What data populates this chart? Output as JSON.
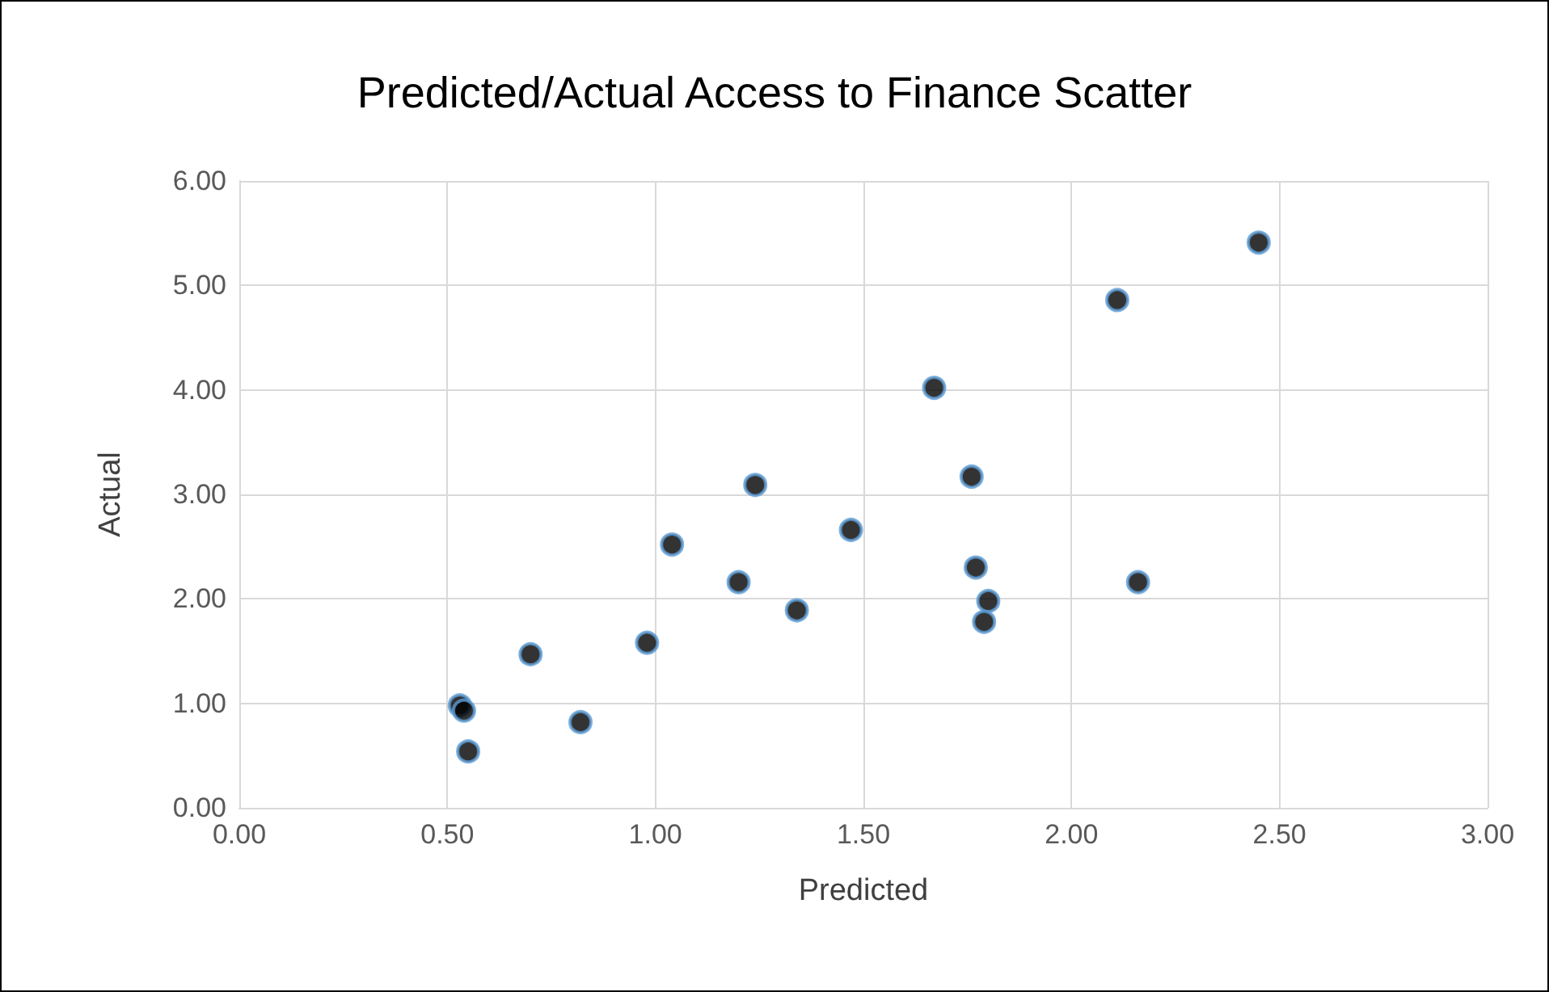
{
  "chart_data": {
    "type": "scatter",
    "title": "Predicted/Actual Access to Finance Scatter",
    "xlabel": "Predicted",
    "ylabel": "Actual",
    "x": [
      0.53,
      0.54,
      0.55,
      0.7,
      0.82,
      0.98,
      1.04,
      1.2,
      1.24,
      1.34,
      1.47,
      1.67,
      1.76,
      1.77,
      1.8,
      1.79,
      2.11,
      2.16,
      2.45
    ],
    "values": [
      0.98,
      0.93,
      0.54,
      1.47,
      0.82,
      1.58,
      2.52,
      2.16,
      3.09,
      1.89,
      2.66,
      4.02,
      3.17,
      2.3,
      1.98,
      1.78,
      4.86,
      2.16,
      5.41
    ],
    "color": "#000000",
    "xlim": [
      0,
      3
    ],
    "xticks": [
      {
        "value": 0,
        "label": "0.00"
      },
      {
        "value": 0.5,
        "label": "0.50"
      },
      {
        "value": 1,
        "label": "1.00"
      },
      {
        "value": 1.5,
        "label": "1.50"
      },
      {
        "value": 2,
        "label": "2.00"
      },
      {
        "value": 2.5,
        "label": "2.50"
      },
      {
        "value": 3,
        "label": "3.00"
      }
    ],
    "ylim": [
      0,
      6
    ],
    "yticks": [
      {
        "value": 0,
        "label": "0.00"
      },
      {
        "value": 1,
        "label": "1.00"
      },
      {
        "value": 2,
        "label": "2.00"
      },
      {
        "value": 3,
        "label": "3.00"
      },
      {
        "value": 4,
        "label": "4.00"
      },
      {
        "value": 5,
        "label": "5.00"
      },
      {
        "value": 6,
        "label": "6.00"
      }
    ],
    "grid": true,
    "marker": "circle"
  }
}
